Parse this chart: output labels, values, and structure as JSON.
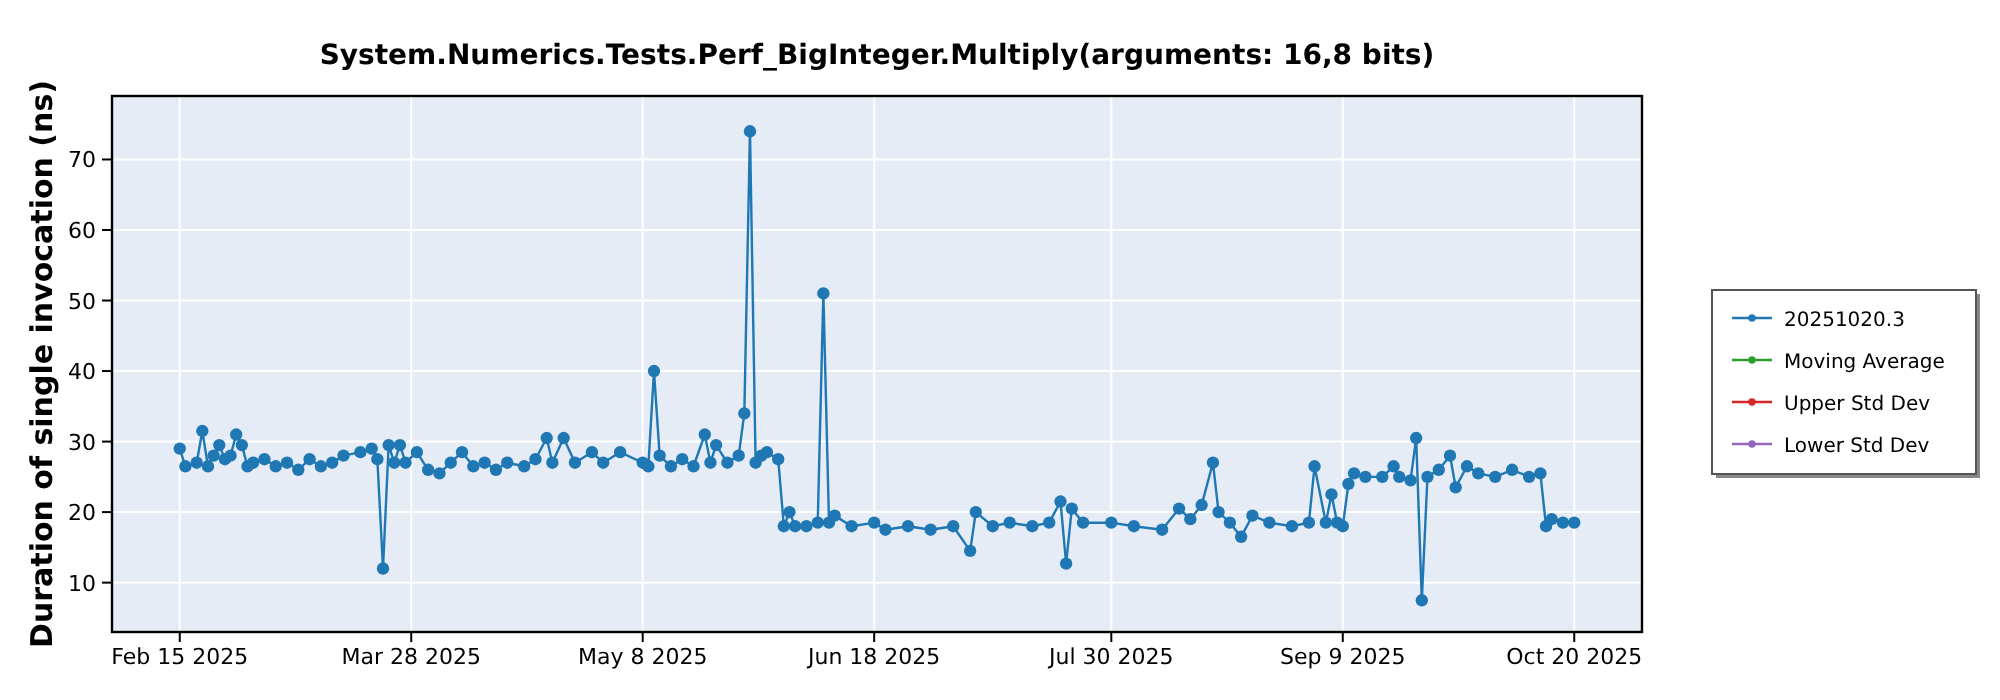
{
  "chart_data": {
    "type": "line",
    "title": "System.Numerics.Tests.Perf_BigInteger.Multiply(arguments: 16,8 bits)",
    "ylabel": "Duration of single invocation (ns)",
    "x": [
      "2025-02-15",
      "2025-02-16",
      "2025-02-18",
      "2025-02-19",
      "2025-02-20",
      "2025-02-21",
      "2025-02-22",
      "2025-02-23",
      "2025-02-24",
      "2025-02-25",
      "2025-02-26",
      "2025-02-27",
      "2025-02-28",
      "2025-03-02",
      "2025-03-04",
      "2025-03-06",
      "2025-03-08",
      "2025-03-10",
      "2025-03-12",
      "2025-03-14",
      "2025-03-16",
      "2025-03-19",
      "2025-03-21",
      "2025-03-22",
      "2025-03-23",
      "2025-03-24",
      "2025-03-25",
      "2025-03-26",
      "2025-03-27",
      "2025-03-29",
      "2025-03-31",
      "2025-04-02",
      "2025-04-04",
      "2025-04-06",
      "2025-04-08",
      "2025-04-10",
      "2025-04-12",
      "2025-04-14",
      "2025-04-17",
      "2025-04-19",
      "2025-04-21",
      "2025-04-22",
      "2025-04-24",
      "2025-04-26",
      "2025-04-29",
      "2025-05-01",
      "2025-05-04",
      "2025-05-08",
      "2025-05-09",
      "2025-05-10",
      "2025-05-11",
      "2025-05-13",
      "2025-05-15",
      "2025-05-17",
      "2025-05-19",
      "2025-05-20",
      "2025-05-21",
      "2025-05-23",
      "2025-05-25",
      "2025-05-26",
      "2025-05-27",
      "2025-05-28",
      "2025-05-29",
      "2025-05-30",
      "2025-06-01",
      "2025-06-02",
      "2025-06-03",
      "2025-06-04",
      "2025-06-06",
      "2025-06-08",
      "2025-06-09",
      "2025-06-10",
      "2025-06-11",
      "2025-06-14",
      "2025-06-18",
      "2025-06-20",
      "2025-06-24",
      "2025-06-28",
      "2025-07-02",
      "2025-07-05",
      "2025-07-06",
      "2025-07-09",
      "2025-07-12",
      "2025-07-16",
      "2025-07-19",
      "2025-07-21",
      "2025-07-22",
      "2025-07-23",
      "2025-07-25",
      "2025-07-30",
      "2025-08-03",
      "2025-08-08",
      "2025-08-11",
      "2025-08-13",
      "2025-08-15",
      "2025-08-17",
      "2025-08-18",
      "2025-08-20",
      "2025-08-22",
      "2025-08-24",
      "2025-08-27",
      "2025-08-31",
      "2025-09-03",
      "2025-09-04",
      "2025-09-06",
      "2025-09-07",
      "2025-09-08",
      "2025-09-09",
      "2025-09-10",
      "2025-09-11",
      "2025-09-13",
      "2025-09-16",
      "2025-09-18",
      "2025-09-19",
      "2025-09-21",
      "2025-09-22",
      "2025-09-23",
      "2025-09-24",
      "2025-09-26",
      "2025-09-28",
      "2025-09-29",
      "2025-10-01",
      "2025-10-03",
      "2025-10-06",
      "2025-10-09",
      "2025-10-12",
      "2025-10-14",
      "2025-10-15",
      "2025-10-16",
      "2025-10-18",
      "2025-10-20"
    ],
    "series": [
      {
        "name": "20251020.3",
        "color": "#1f77b4",
        "values": [
          29,
          26.5,
          27,
          31.5,
          26.5,
          28,
          29.5,
          27.5,
          28,
          31,
          29.5,
          26.5,
          27,
          27.5,
          26.5,
          27,
          26,
          27.5,
          26.5,
          27,
          28,
          28.5,
          29,
          27.5,
          12,
          29.5,
          27,
          29.5,
          27,
          28.5,
          26,
          25.5,
          27,
          28.5,
          26.5,
          27,
          26,
          27,
          26.5,
          27.5,
          30.5,
          27,
          30.5,
          27,
          28.5,
          27,
          28.5,
          27,
          26.5,
          40,
          28,
          26.5,
          27.5,
          26.5,
          31,
          27,
          29.5,
          27,
          28,
          34,
          74,
          27,
          28,
          28.5,
          27.5,
          18,
          20,
          18,
          18,
          18.5,
          51,
          18.5,
          19.5,
          18,
          18.5,
          17.5,
          18,
          17.5,
          18,
          14.5,
          20,
          18,
          18.5,
          18,
          18.5,
          21.5,
          12.7,
          20.5,
          18.5,
          18.5,
          18,
          17.5,
          20.5,
          19,
          21,
          27,
          20,
          18.5,
          16.5,
          19.5,
          18.5,
          18,
          18.5,
          26.5,
          18.5,
          22.5,
          18.5,
          18,
          24,
          25.5,
          25,
          25,
          26.5,
          25,
          24.5,
          30.5,
          7.5,
          25,
          26,
          28,
          23.5,
          26.5,
          25.5,
          25,
          26,
          25,
          25.5,
          18,
          19,
          18.5,
          18.5
        ]
      },
      {
        "name": "Moving Average",
        "color": "#2ca02c",
        "values": [
          null,
          null,
          null,
          null,
          null,
          null,
          null,
          null,
          null,
          null,
          null,
          null,
          null,
          null,
          null,
          null,
          null,
          null,
          null,
          null,
          null,
          null,
          null,
          null,
          null,
          null,
          null,
          null,
          null,
          null,
          null,
          null,
          null,
          null,
          null,
          null,
          null,
          null,
          null,
          null,
          null,
          null,
          null,
          null,
          null,
          null,
          null,
          null,
          null,
          null,
          null,
          null,
          null,
          null,
          null,
          null,
          null,
          null,
          null,
          null,
          null,
          null,
          null,
          null,
          null,
          null,
          null,
          null,
          null,
          null,
          null,
          null,
          null,
          null,
          null,
          null,
          null,
          null,
          null,
          null,
          null,
          null,
          null,
          null,
          null,
          null,
          null,
          null,
          null,
          null,
          null,
          null,
          null,
          null,
          null,
          null,
          null,
          null,
          null,
          null,
          null,
          null,
          null,
          null,
          null,
          null,
          null,
          null,
          null,
          null,
          null,
          null,
          null,
          null,
          null,
          null,
          null,
          null,
          null,
          null,
          null,
          null,
          null,
          null,
          null,
          null,
          null,
          null,
          null,
          null,
          null
        ]
      },
      {
        "name": "Upper Std Dev",
        "color": "#d62728",
        "values": [
          null,
          null,
          null,
          null,
          null,
          null,
          null,
          null,
          null,
          null,
          null,
          null,
          null,
          null,
          null,
          null,
          null,
          null,
          null,
          null,
          null,
          null,
          null,
          null,
          null,
          null,
          null,
          null,
          null,
          null,
          null,
          null,
          null,
          null,
          null,
          null,
          null,
          null,
          null,
          null,
          null,
          null,
          null,
          null,
          null,
          null,
          null,
          null,
          null,
          null,
          null,
          null,
          null,
          null,
          null,
          null,
          null,
          null,
          null,
          null,
          null,
          null,
          null,
          null,
          null,
          null,
          null,
          null,
          null,
          null,
          null,
          null,
          null,
          null,
          null,
          null,
          null,
          null,
          null,
          null,
          null,
          null,
          null,
          null,
          null,
          null,
          null,
          null,
          null,
          null,
          null,
          null,
          null,
          null,
          null,
          null,
          null,
          null,
          null,
          null,
          null,
          null,
          null,
          null,
          null,
          null,
          null,
          null,
          null,
          null,
          null,
          null,
          null,
          null,
          null,
          null,
          null,
          null,
          null,
          null,
          null,
          null,
          null,
          null,
          null,
          null,
          null,
          null,
          null,
          null,
          null
        ]
      },
      {
        "name": "Lower Std Dev",
        "color": "#9467bd",
        "values": [
          null,
          null,
          null,
          null,
          null,
          null,
          null,
          null,
          null,
          null,
          null,
          null,
          null,
          null,
          null,
          null,
          null,
          null,
          null,
          null,
          null,
          null,
          null,
          null,
          null,
          null,
          null,
          null,
          null,
          null,
          null,
          null,
          null,
          null,
          null,
          null,
          null,
          null,
          null,
          null,
          null,
          null,
          null,
          null,
          null,
          null,
          null,
          null,
          null,
          null,
          null,
          null,
          null,
          null,
          null,
          null,
          null,
          null,
          null,
          null,
          null,
          null,
          null,
          null,
          null,
          null,
          null,
          null,
          null,
          null,
          null,
          null,
          null,
          null,
          null,
          null,
          null,
          null,
          null,
          null,
          null,
          null,
          null,
          null,
          null,
          null,
          null,
          null,
          null,
          null,
          null,
          null,
          null,
          null,
          null,
          null,
          null,
          null,
          null,
          null,
          null,
          null,
          null,
          null,
          null,
          null,
          null,
          null,
          null,
          null,
          null,
          null,
          null,
          null,
          null,
          null,
          null,
          null,
          null,
          null,
          null,
          null,
          null,
          null,
          null,
          null,
          null,
          null,
          null,
          null,
          null
        ]
      }
    ],
    "xlim": [
      "2025-02-03",
      "2025-11-01"
    ],
    "xticks": [
      {
        "value": "2025-02-15",
        "label": "Feb 15 2025"
      },
      {
        "value": "2025-03-28",
        "label": "Mar 28 2025"
      },
      {
        "value": "2025-05-08",
        "label": "May 8 2025"
      },
      {
        "value": "2025-06-18",
        "label": "Jun 18 2025"
      },
      {
        "value": "2025-07-30",
        "label": "Jul 30 2025"
      },
      {
        "value": "2025-09-09",
        "label": "Sep 9 2025"
      },
      {
        "value": "2025-10-20",
        "label": "Oct 20 2025"
      }
    ],
    "ylim": [
      3,
      79
    ],
    "yticks": [
      10,
      20,
      30,
      40,
      50,
      60,
      70
    ],
    "grid": true,
    "legend": "right",
    "marker": "circle",
    "line_style": "solid"
  }
}
